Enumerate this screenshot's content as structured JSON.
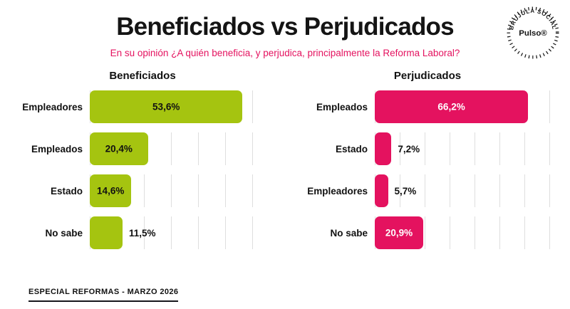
{
  "header": {
    "title": "Beneficiados vs Perjudicados",
    "subtitle": "En su opinión ¿A quién beneficia, y perjudica, principalmente la Reforma Laboral?",
    "subtitle_color": "#e4125f"
  },
  "logo": {
    "brand": "Pulso®",
    "ring_text": "BRUJULA SOCIAL"
  },
  "footer": {
    "label": "ESPECIAL REFORMAS - MARZO 2026"
  },
  "colors": {
    "green": "#a5c410",
    "pink": "#e4125f"
  },
  "chart_data": [
    {
      "type": "bar",
      "orientation": "horizontal",
      "title": "Beneficiados",
      "categories": [
        "Empleadores",
        "Empleados",
        "Estado",
        "No sabe"
      ],
      "values": [
        53.6,
        20.4,
        14.6,
        11.5
      ],
      "value_labels": [
        "53,6%",
        "20,4%",
        "14,6%",
        "11,5%"
      ],
      "xlim": [
        0,
        65
      ],
      "bar_color": "#a5c410",
      "grid": true,
      "legend": "none"
    },
    {
      "type": "bar",
      "orientation": "horizontal",
      "title": "Perjudicados",
      "categories": [
        "Empleados",
        "Estado",
        "Empleadores",
        "No sabe"
      ],
      "values": [
        66.2,
        7.2,
        5.7,
        20.9
      ],
      "value_labels": [
        "66,2%",
        "7,2%",
        "5,7%",
        "20,9%"
      ],
      "xlim": [
        0,
        80
      ],
      "bar_color": "#e4125f",
      "grid": true,
      "legend": "none"
    }
  ]
}
